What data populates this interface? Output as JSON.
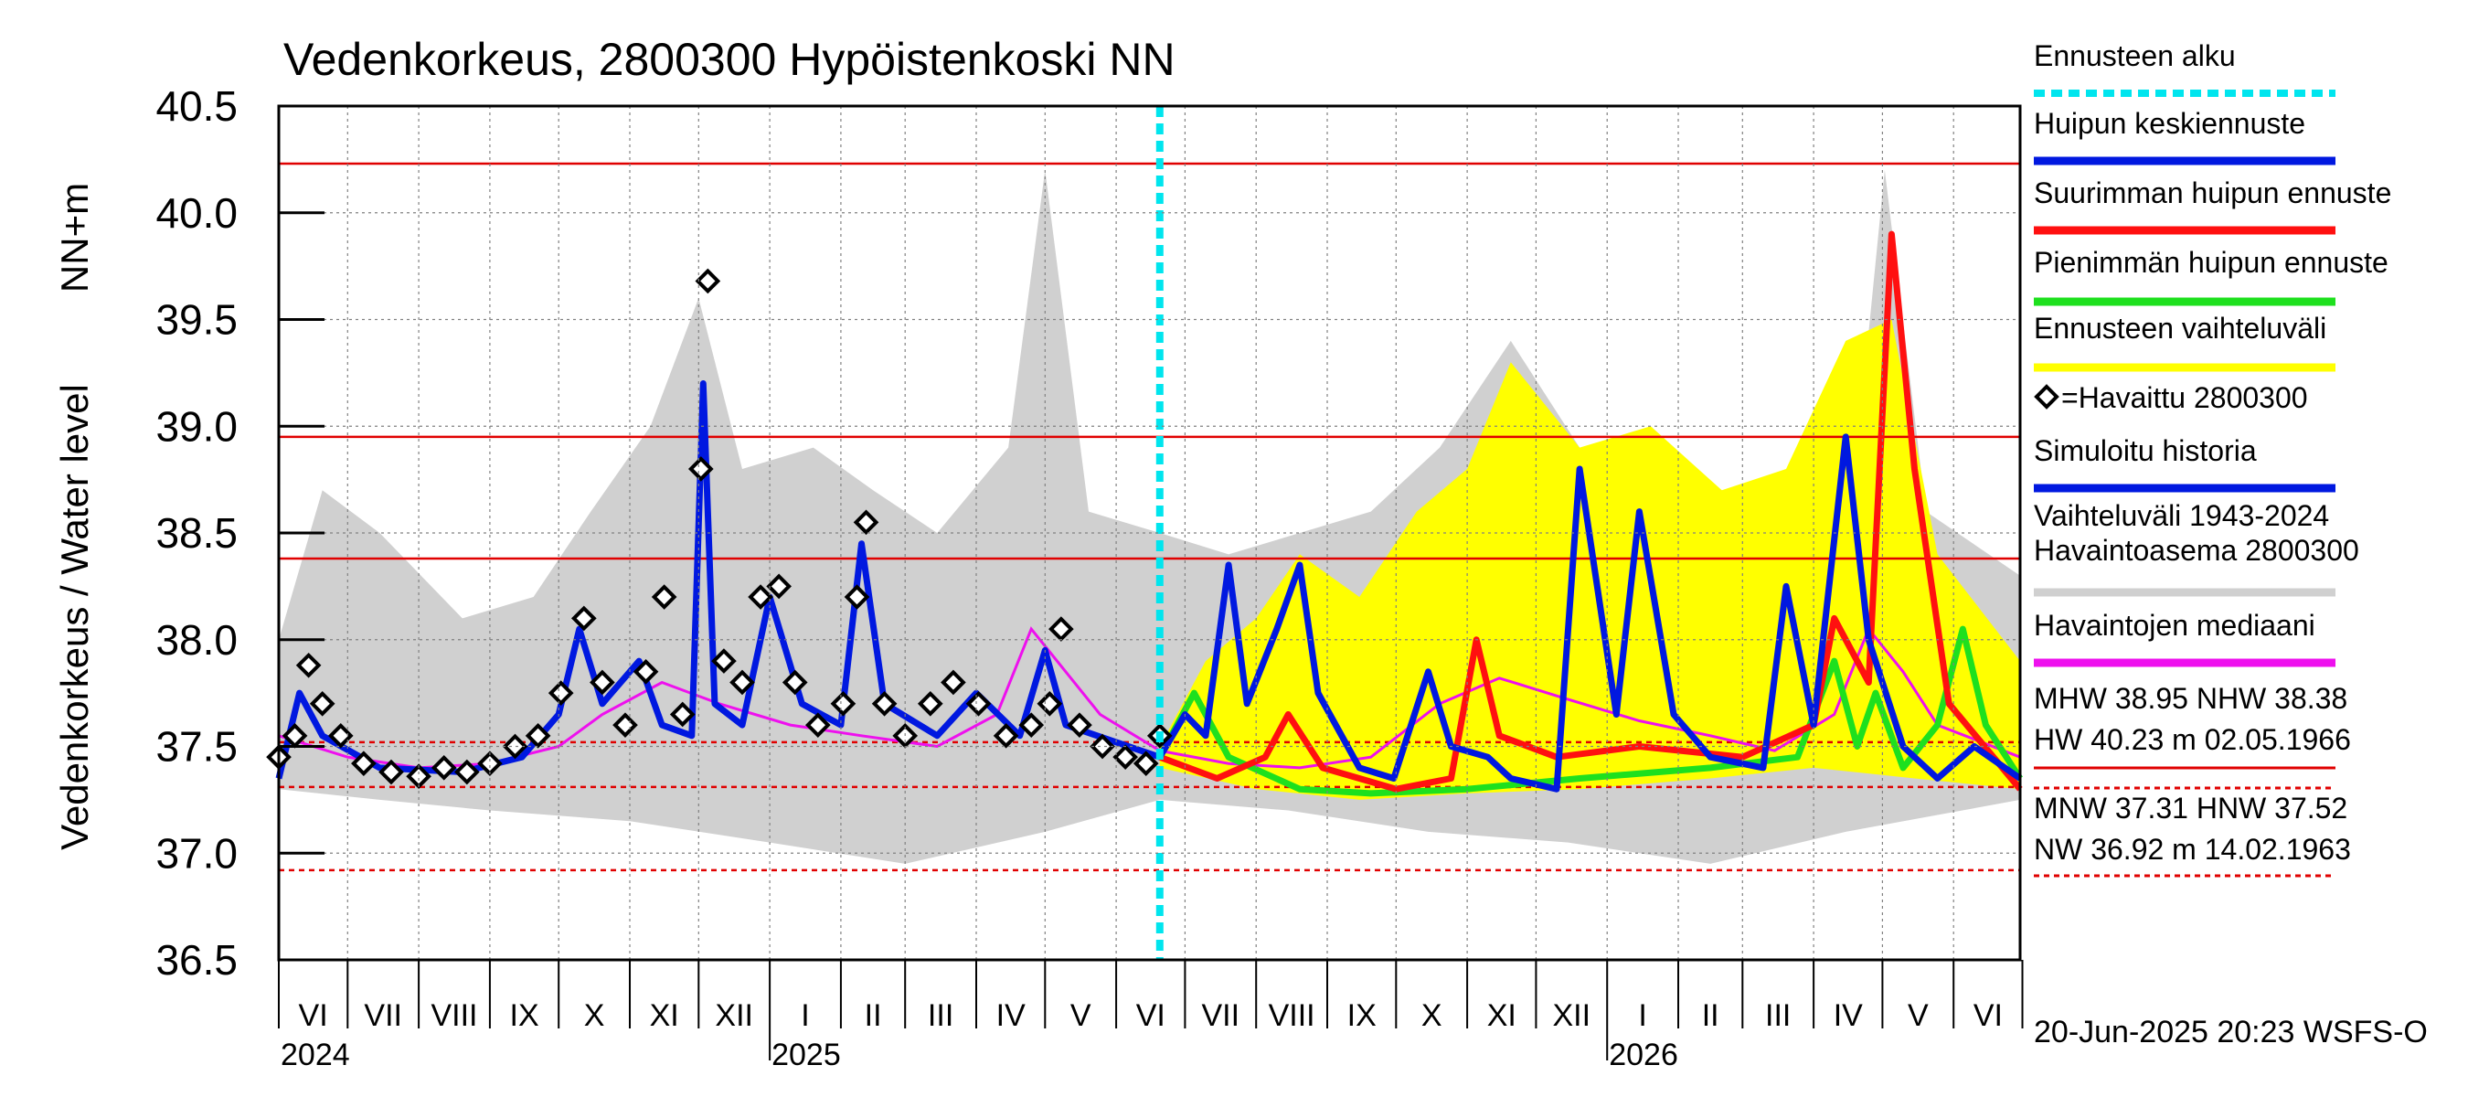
{
  "chart_data": {
    "type": "line",
    "title": "Vedenkorkeus, 2800300 Hypöistenkoski NN",
    "ylabel": "Vedenkorkeus / Water level",
    "yunit": "NN+m",
    "ylim": [
      36.5,
      40.5
    ],
    "yticks": [
      "40.5",
      "40.0",
      "39.5",
      "39.0",
      "38.5",
      "38.0",
      "37.5",
      "37.0",
      "36.5"
    ],
    "grid": true,
    "xlim": [
      "2024-06-01",
      "2026-06-30"
    ],
    "months": [
      "VI",
      "VII",
      "VIII",
      "IX",
      "X",
      "XI",
      "XII",
      "I",
      "II",
      "III",
      "IV",
      "V",
      "VI",
      "VII",
      "VIII",
      "IX",
      "X",
      "XI",
      "XII",
      "I",
      "II",
      "III",
      "IV",
      "V",
      "VI"
    ],
    "years": [
      "2024",
      "2025",
      "2026"
    ],
    "forecast_start": "2025-06-20",
    "timestamp": "20-Jun-2025 20:23 WSFS-O",
    "reference_lines": [
      {
        "name": "HW",
        "value": 40.23,
        "style": "solid"
      },
      {
        "name": "MHW",
        "value": 38.95,
        "style": "solid"
      },
      {
        "name": "NHW",
        "value": 38.38,
        "style": "solid"
      },
      {
        "name": "HNW",
        "value": 37.52,
        "style": "dashed"
      },
      {
        "name": "MNW",
        "value": 37.31,
        "style": "dashed"
      },
      {
        "name": "NW",
        "value": 36.92,
        "style": "dashed"
      }
    ],
    "stats_text": [
      "MHW  38.95 NHW  38.38",
      "HW  40.23 m 02.05.1966",
      "MNW  37.31 HNW  37.52",
      "NW  36.92 m 14.02.1963"
    ],
    "legend": [
      {
        "label": "Ennusteen alku",
        "color": "#00e5ee",
        "style": "dotted"
      },
      {
        "label": "Huipun keskiennuste",
        "color": "#0018e0",
        "style": "solid"
      },
      {
        "label": "Suurimman huipun ennuste",
        "color": "#ff1010",
        "style": "solid"
      },
      {
        "label": "Pienimmän huipun ennuste",
        "color": "#1ee01e",
        "style": "solid"
      },
      {
        "label": "Ennusteen vaihteluväli",
        "color": "#ffff00",
        "style": "solid"
      },
      {
        "label": "=Havaittu 2800300",
        "color": "#000000",
        "style": "marker"
      },
      {
        "label": "Simuloitu historia",
        "color": "#0018e0",
        "style": "solid"
      },
      {
        "label": "Vaihteluväli 1943-2024",
        "label2": " Havaintoasema 2800300",
        "color": "#d0d0d0",
        "style": "solid"
      },
      {
        "label": "Havaintojen mediaani",
        "color": "#ee10ee",
        "style": "solid"
      }
    ],
    "series": [
      {
        "name": "Havaintojen mediaani",
        "color": "#ee10ee",
        "points": [
          [
            "2024-06-01",
            37.55
          ],
          [
            "2024-07-01",
            37.45
          ],
          [
            "2024-08-01",
            37.4
          ],
          [
            "2024-09-01",
            37.42
          ],
          [
            "2024-10-01",
            37.5
          ],
          [
            "2024-10-20",
            37.65
          ],
          [
            "2024-11-15",
            37.8
          ],
          [
            "2024-12-10",
            37.7
          ],
          [
            "2025-01-10",
            37.6
          ],
          [
            "2025-02-10",
            37.55
          ],
          [
            "2025-03-15",
            37.5
          ],
          [
            "2025-04-10",
            37.65
          ],
          [
            "2025-04-25",
            38.05
          ],
          [
            "2025-05-10",
            37.85
          ],
          [
            "2025-05-25",
            37.65
          ],
          [
            "2025-06-20",
            37.48
          ],
          [
            "2025-07-20",
            37.42
          ],
          [
            "2025-08-20",
            37.4
          ],
          [
            "2025-09-20",
            37.45
          ],
          [
            "2025-10-20",
            37.7
          ],
          [
            "2025-11-15",
            37.82
          ],
          [
            "2025-12-15",
            37.72
          ],
          [
            "2026-01-15",
            37.62
          ],
          [
            "2026-02-15",
            37.55
          ],
          [
            "2026-03-15",
            37.48
          ],
          [
            "2026-04-10",
            37.65
          ],
          [
            "2026-04-25",
            38.05
          ],
          [
            "2026-05-10",
            37.85
          ],
          [
            "2026-05-25",
            37.6
          ],
          [
            "2026-06-30",
            37.45
          ]
        ]
      },
      {
        "name": "Simuloitu historia",
        "color": "#0018e0",
        "points": [
          [
            "2024-06-01",
            37.35
          ],
          [
            "2024-06-10",
            37.75
          ],
          [
            "2024-06-20",
            37.55
          ],
          [
            "2024-07-15",
            37.4
          ],
          [
            "2024-08-20",
            37.38
          ],
          [
            "2024-09-15",
            37.45
          ],
          [
            "2024-10-01",
            37.65
          ],
          [
            "2024-10-10",
            38.05
          ],
          [
            "2024-10-20",
            37.7
          ],
          [
            "2024-11-05",
            37.9
          ],
          [
            "2024-11-15",
            37.6
          ],
          [
            "2024-11-28",
            37.55
          ],
          [
            "2024-12-03",
            39.2
          ],
          [
            "2024-12-08",
            37.7
          ],
          [
            "2024-12-20",
            37.6
          ],
          [
            "2025-01-01",
            38.2
          ],
          [
            "2025-01-15",
            37.7
          ],
          [
            "2025-02-01",
            37.6
          ],
          [
            "2025-02-10",
            38.45
          ],
          [
            "2025-02-20",
            37.7
          ],
          [
            "2025-03-15",
            37.55
          ],
          [
            "2025-04-01",
            37.75
          ],
          [
            "2025-04-20",
            37.55
          ],
          [
            "2025-05-01",
            37.95
          ],
          [
            "2025-05-10",
            37.6
          ],
          [
            "2025-06-20",
            37.45
          ]
        ]
      },
      {
        "name": "Huipun keskiennuste",
        "color": "#0018e0",
        "points": [
          [
            "2025-06-20",
            37.45
          ],
          [
            "2025-07-01",
            37.65
          ],
          [
            "2025-07-10",
            37.55
          ],
          [
            "2025-07-20",
            38.35
          ],
          [
            "2025-07-28",
            37.7
          ],
          [
            "2025-08-10",
            38.05
          ],
          [
            "2025-08-20",
            38.35
          ],
          [
            "2025-08-28",
            37.75
          ],
          [
            "2025-09-15",
            37.4
          ],
          [
            "2025-09-30",
            37.35
          ],
          [
            "2025-10-15",
            37.85
          ],
          [
            "2025-10-25",
            37.5
          ],
          [
            "2025-11-10",
            37.45
          ],
          [
            "2025-11-20",
            37.35
          ],
          [
            "2025-12-10",
            37.3
          ],
          [
            "2025-12-20",
            38.8
          ],
          [
            "2026-01-05",
            37.65
          ],
          [
            "2026-01-15",
            38.6
          ],
          [
            "2026-01-30",
            37.65
          ],
          [
            "2026-02-15",
            37.45
          ],
          [
            "2026-03-10",
            37.4
          ],
          [
            "2026-03-20",
            38.25
          ],
          [
            "2026-04-01",
            37.6
          ],
          [
            "2026-04-15",
            38.95
          ],
          [
            "2026-04-25",
            38.0
          ],
          [
            "2026-05-10",
            37.5
          ],
          [
            "2026-05-25",
            37.35
          ],
          [
            "2026-06-10",
            37.5
          ],
          [
            "2026-06-30",
            37.35
          ]
        ]
      },
      {
        "name": "Suurimman huipun ennuste",
        "color": "#ff1010",
        "points": [
          [
            "2025-06-20",
            37.45
          ],
          [
            "2025-07-15",
            37.35
          ],
          [
            "2025-08-05",
            37.45
          ],
          [
            "2025-08-15",
            37.65
          ],
          [
            "2025-08-30",
            37.4
          ],
          [
            "2025-10-01",
            37.3
          ],
          [
            "2025-10-25",
            37.35
          ],
          [
            "2025-11-05",
            38.0
          ],
          [
            "2025-11-15",
            37.55
          ],
          [
            "2025-12-10",
            37.45
          ],
          [
            "2026-01-15",
            37.5
          ],
          [
            "2026-03-01",
            37.45
          ],
          [
            "2026-04-01",
            37.6
          ],
          [
            "2026-04-10",
            38.1
          ],
          [
            "2026-04-25",
            37.8
          ],
          [
            "2026-05-05",
            39.9
          ],
          [
            "2026-05-15",
            38.8
          ],
          [
            "2026-05-30",
            37.7
          ],
          [
            "2026-06-30",
            37.3
          ]
        ]
      },
      {
        "name": "Pienimmän huipun ennuste",
        "color": "#1ee01e",
        "points": [
          [
            "2025-06-20",
            37.45
          ],
          [
            "2025-07-05",
            37.75
          ],
          [
            "2025-07-20",
            37.45
          ],
          [
            "2025-08-20",
            37.3
          ],
          [
            "2025-09-20",
            37.28
          ],
          [
            "2025-11-01",
            37.3
          ],
          [
            "2025-12-20",
            37.35
          ],
          [
            "2026-02-15",
            37.4
          ],
          [
            "2026-03-25",
            37.45
          ],
          [
            "2026-04-10",
            37.9
          ],
          [
            "2026-04-20",
            37.5
          ],
          [
            "2026-04-28",
            37.75
          ],
          [
            "2026-05-10",
            37.4
          ],
          [
            "2026-05-25",
            37.6
          ],
          [
            "2026-06-05",
            38.05
          ],
          [
            "2026-06-15",
            37.6
          ],
          [
            "2026-06-30",
            37.35
          ]
        ]
      },
      {
        "name": "Ennusteen vaihteluväli",
        "color": "#ffff00",
        "upper": [
          [
            "2025-06-20",
            37.5
          ],
          [
            "2025-07-10",
            37.9
          ],
          [
            "2025-08-01",
            38.1
          ],
          [
            "2025-08-20",
            38.4
          ],
          [
            "2025-09-15",
            38.2
          ],
          [
            "2025-10-10",
            38.6
          ],
          [
            "2025-11-01",
            38.8
          ],
          [
            "2025-11-20",
            39.3
          ],
          [
            "2025-12-20",
            38.9
          ],
          [
            "2026-01-20",
            39.0
          ],
          [
            "2026-02-20",
            38.7
          ],
          [
            "2026-03-20",
            38.8
          ],
          [
            "2026-04-15",
            39.4
          ],
          [
            "2026-05-05",
            39.5
          ],
          [
            "2026-05-25",
            38.4
          ],
          [
            "2026-06-30",
            37.9
          ]
        ],
        "lower": [
          [
            "2025-06-20",
            37.4
          ],
          [
            "2025-08-01",
            37.3
          ],
          [
            "2025-09-15",
            37.25
          ],
          [
            "2025-11-01",
            37.28
          ],
          [
            "2025-12-20",
            37.3
          ],
          [
            "2026-02-15",
            37.35
          ],
          [
            "2026-04-01",
            37.4
          ],
          [
            "2026-05-15",
            37.35
          ],
          [
            "2026-06-30",
            37.3
          ]
        ]
      },
      {
        "name": "Vaihteluväli 1943-2024",
        "color": "#d0d0d0",
        "upper": [
          [
            "2024-06-01",
            38.0
          ],
          [
            "2024-06-20",
            38.7
          ],
          [
            "2024-07-15",
            38.5
          ],
          [
            "2024-08-20",
            38.1
          ],
          [
            "2024-09-20",
            38.2
          ],
          [
            "2024-10-15",
            38.6
          ],
          [
            "2024-11-10",
            39.0
          ],
          [
            "2024-12-01",
            39.6
          ],
          [
            "2024-12-20",
            38.8
          ],
          [
            "2025-01-20",
            38.9
          ],
          [
            "2025-02-15",
            38.7
          ],
          [
            "2025-03-15",
            38.5
          ],
          [
            "2025-04-15",
            38.9
          ],
          [
            "2025-05-01",
            40.2
          ],
          [
            "2025-05-20",
            38.6
          ],
          [
            "2025-06-20",
            38.5
          ],
          [
            "2025-07-20",
            38.4
          ],
          [
            "2025-08-20",
            38.5
          ],
          [
            "2025-09-20",
            38.6
          ],
          [
            "2025-10-20",
            38.9
          ],
          [
            "2025-11-20",
            39.4
          ],
          [
            "2025-12-20",
            38.9
          ],
          [
            "2026-01-20",
            38.9
          ],
          [
            "2026-02-20",
            38.7
          ],
          [
            "2026-03-20",
            38.6
          ],
          [
            "2026-04-20",
            38.9
          ],
          [
            "2026-05-02",
            40.2
          ],
          [
            "2026-05-20",
            38.6
          ],
          [
            "2026-06-30",
            38.3
          ]
        ],
        "lower": [
          [
            "2024-06-01",
            37.3
          ],
          [
            "2024-07-15",
            37.25
          ],
          [
            "2024-09-01",
            37.2
          ],
          [
            "2024-11-01",
            37.15
          ],
          [
            "2025-01-01",
            37.05
          ],
          [
            "2025-03-01",
            36.95
          ],
          [
            "2025-05-01",
            37.1
          ],
          [
            "2025-06-20",
            37.25
          ],
          [
            "2025-08-15",
            37.2
          ],
          [
            "2025-10-15",
            37.1
          ],
          [
            "2025-12-15",
            37.05
          ],
          [
            "2026-02-15",
            36.95
          ],
          [
            "2026-04-15",
            37.1
          ],
          [
            "2026-06-30",
            37.25
          ]
        ]
      },
      {
        "name": "=Havaittu 2800300",
        "color": "#000000",
        "marker": "diamond",
        "points": [
          [
            "2024-06-01",
            37.45
          ],
          [
            "2024-06-08",
            37.55
          ],
          [
            "2024-06-14",
            37.88
          ],
          [
            "2024-06-20",
            37.7
          ],
          [
            "2024-06-28",
            37.55
          ],
          [
            "2024-07-08",
            37.42
          ],
          [
            "2024-07-20",
            37.38
          ],
          [
            "2024-08-01",
            37.36
          ],
          [
            "2024-08-12",
            37.4
          ],
          [
            "2024-08-22",
            37.38
          ],
          [
            "2024-09-01",
            37.42
          ],
          [
            "2024-09-12",
            37.5
          ],
          [
            "2024-09-22",
            37.55
          ],
          [
            "2024-10-02",
            37.75
          ],
          [
            "2024-10-12",
            38.1
          ],
          [
            "2024-10-20",
            37.8
          ],
          [
            "2024-10-30",
            37.6
          ],
          [
            "2024-11-08",
            37.85
          ],
          [
            "2024-11-16",
            38.2
          ],
          [
            "2024-11-24",
            37.65
          ],
          [
            "2024-12-02",
            38.8
          ],
          [
            "2024-12-05",
            39.68
          ],
          [
            "2024-12-12",
            37.9
          ],
          [
            "2024-12-20",
            37.8
          ],
          [
            "2024-12-28",
            38.2
          ],
          [
            "2025-01-05",
            38.25
          ],
          [
            "2025-01-12",
            37.8
          ],
          [
            "2025-01-22",
            37.6
          ],
          [
            "2025-02-02",
            37.7
          ],
          [
            "2025-02-08",
            38.2
          ],
          [
            "2025-02-12",
            38.55
          ],
          [
            "2025-02-20",
            37.7
          ],
          [
            "2025-03-01",
            37.55
          ],
          [
            "2025-03-12",
            37.7
          ],
          [
            "2025-03-22",
            37.8
          ],
          [
            "2025-04-02",
            37.7
          ],
          [
            "2025-04-14",
            37.55
          ],
          [
            "2025-04-25",
            37.6
          ],
          [
            "2025-05-03",
            37.7
          ],
          [
            "2025-05-08",
            38.05
          ],
          [
            "2025-05-16",
            37.6
          ],
          [
            "2025-05-26",
            37.5
          ],
          [
            "2025-06-05",
            37.45
          ],
          [
            "2025-06-14",
            37.42
          ],
          [
            "2025-06-20",
            37.55
          ]
        ]
      }
    ]
  }
}
